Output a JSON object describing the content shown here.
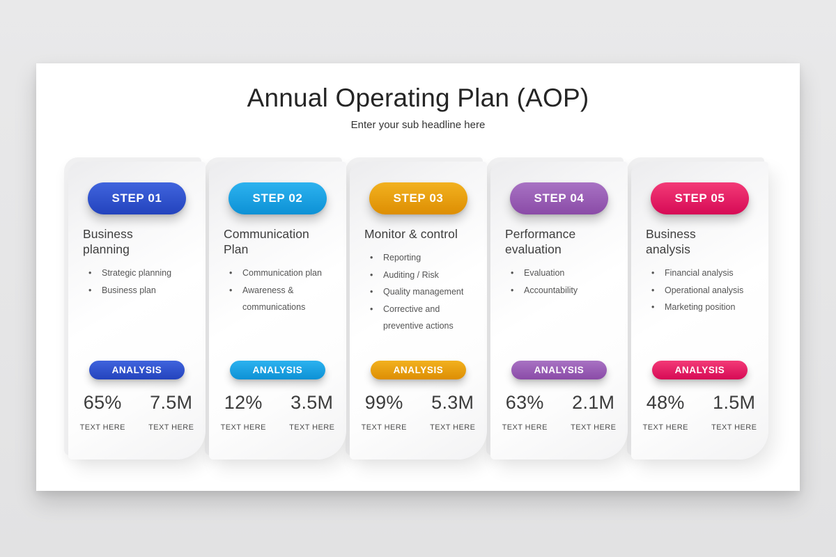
{
  "slide": {
    "title": "Annual Operating Plan (AOP)",
    "subtitle": "Enter your sub headline here"
  },
  "steps": [
    {
      "step_label": "STEP 01",
      "title": "Business planning",
      "bullets": [
        "Strategic planning",
        "Business plan"
      ],
      "analysis_label": "ANALYSIS",
      "metrics": [
        {
          "value": "65%",
          "label": "TEXT HERE"
        },
        {
          "value": "7.5M",
          "label": "TEXT HERE"
        }
      ],
      "color": "#2d52cd",
      "color_light": "#4064dd",
      "color_dark": "#2343bd"
    },
    {
      "step_label": "STEP 02",
      "title": "Communication Plan",
      "bullets": [
        "Communication plan",
        "Awareness & communications"
      ],
      "analysis_label": "ANALYSIS",
      "metrics": [
        {
          "value": "12%",
          "label": "TEXT HERE"
        },
        {
          "value": "3.5M",
          "label": "TEXT HERE"
        }
      ],
      "color": "#17a2e2",
      "color_light": "#2cb2ef",
      "color_dark": "#0d91d5"
    },
    {
      "step_label": "STEP 03",
      "title": "Monitor & control",
      "bullets": [
        "Reporting",
        "Auditing / Risk",
        "Quality management",
        "Corrective and preventive actions"
      ],
      "analysis_label": "ANALYSIS",
      "metrics": [
        {
          "value": "99%",
          "label": "TEXT HERE"
        },
        {
          "value": "5.3M",
          "label": "TEXT HERE"
        }
      ],
      "color": "#eaa012",
      "color_light": "#f2b11f",
      "color_dark": "#dd8e03"
    },
    {
      "step_label": "STEP 04",
      "title": "Performance evaluation",
      "bullets": [
        "Evaluation",
        "Accountability"
      ],
      "analysis_label": "ANALYSIS",
      "metrics": [
        {
          "value": "63%",
          "label": "TEXT HERE"
        },
        {
          "value": "2.1M",
          "label": "TEXT HERE"
        }
      ],
      "color": "#9a5fb5",
      "color_light": "#a872c3",
      "color_dark": "#8a4ba7"
    },
    {
      "step_label": "STEP 05",
      "title": "Business analysis",
      "bullets": [
        "Financial analysis",
        "Operational analysis",
        "Marketing position"
      ],
      "analysis_label": "ANALYSIS",
      "metrics": [
        {
          "value": "48%",
          "label": "TEXT HERE"
        },
        {
          "value": "1.5M",
          "label": "TEXT HERE"
        }
      ],
      "color": "#e81d64",
      "color_light": "#f33a77",
      "color_dark": "#d60a55"
    }
  ]
}
